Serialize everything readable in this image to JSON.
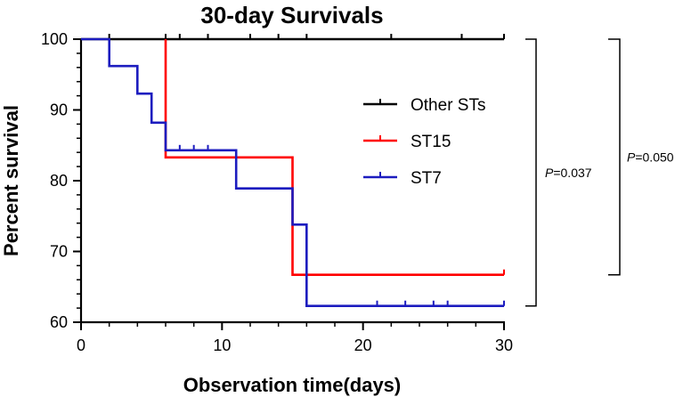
{
  "chart_data": {
    "type": "line",
    "title": "30-day Survivals",
    "xlabel": "Observation time(days)",
    "ylabel": "Percent survival",
    "xlim": [
      0,
      30
    ],
    "ylim": [
      60,
      100
    ],
    "xticks": [
      0,
      10,
      20,
      30
    ],
    "yticks": [
      60,
      70,
      80,
      90,
      100
    ],
    "grid": false,
    "legend_position": "right",
    "series": [
      {
        "name": "Other STs",
        "color": "#000000",
        "steps": [
          [
            0,
            100
          ],
          [
            30,
            100
          ]
        ],
        "censored": [
          [
            2,
            100
          ],
          [
            6,
            100
          ],
          [
            7,
            100
          ],
          [
            9,
            100
          ],
          [
            12,
            100
          ],
          [
            14,
            100
          ],
          [
            16,
            100
          ],
          [
            22,
            100
          ],
          [
            27,
            100
          ],
          [
            30,
            100
          ]
        ]
      },
      {
        "name": "ST15",
        "color": "#ff0000",
        "steps": [
          [
            6,
            100
          ],
          [
            6,
            83.3
          ],
          [
            15,
            83.3
          ],
          [
            15,
            66.7
          ],
          [
            30,
            66.7
          ]
        ],
        "censored": [
          [
            15,
            66.7
          ],
          [
            30,
            66.7
          ]
        ]
      },
      {
        "name": "ST7",
        "color": "#1c1cbf",
        "steps": [
          [
            0,
            100
          ],
          [
            2,
            100
          ],
          [
            2,
            96.2
          ],
          [
            4,
            96.2
          ],
          [
            4,
            92.3
          ],
          [
            5,
            92.3
          ],
          [
            5,
            88.2
          ],
          [
            6,
            88.2
          ],
          [
            6,
            84.3
          ],
          [
            11,
            84.3
          ],
          [
            11,
            78.9
          ],
          [
            15,
            78.9
          ],
          [
            15,
            73.8
          ],
          [
            16,
            73.8
          ],
          [
            16,
            62.3
          ],
          [
            30,
            62.3
          ]
        ],
        "censored": [
          [
            7,
            84.3
          ],
          [
            8,
            84.3
          ],
          [
            9,
            84.3
          ],
          [
            21,
            62.3
          ],
          [
            23,
            62.3
          ],
          [
            25,
            62.3
          ],
          [
            26,
            62.3
          ],
          [
            30,
            62.3
          ]
        ]
      }
    ],
    "annotations": [
      {
        "prefix": "P",
        "text": "=0.037",
        "from": 100,
        "to": 62.3
      },
      {
        "prefix": "P",
        "text": "=0.050",
        "from": 100,
        "to": 66.7
      }
    ]
  }
}
